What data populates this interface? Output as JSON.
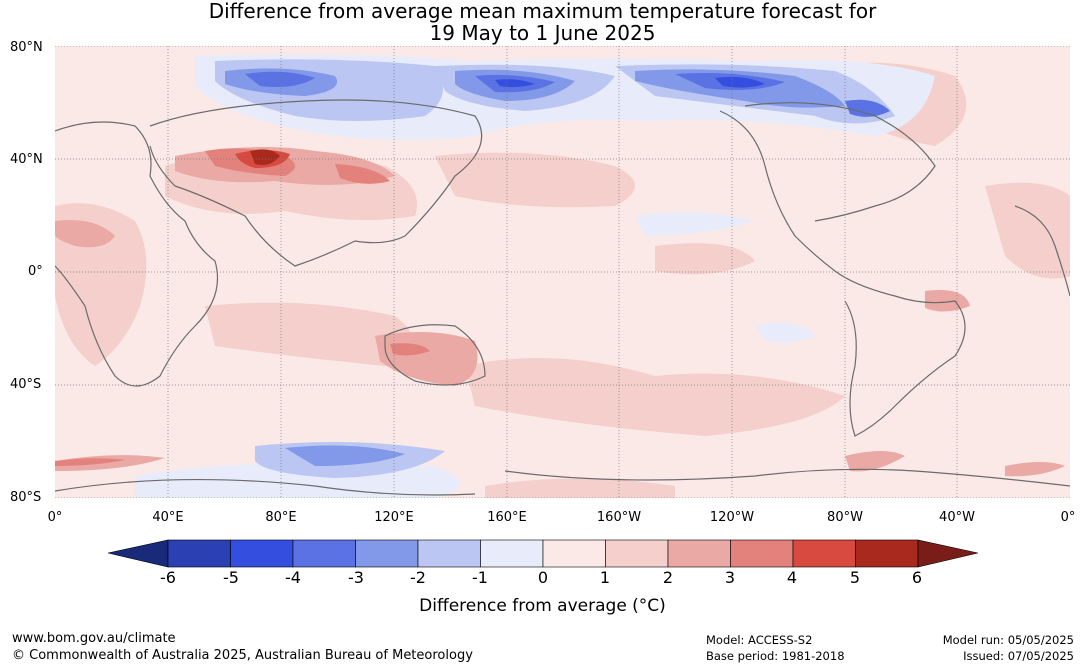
{
  "title_line1": "Difference from average mean maximum temperature forecast for",
  "title_line2": "19 May to 1 June 2025",
  "lat_labels": [
    "80°N",
    "40°N",
    "0°",
    "40°S",
    "80°S"
  ],
  "lon_labels": [
    "0°",
    "40°E",
    "80°E",
    "120°E",
    "160°E",
    "160°W",
    "120°W",
    "80°W",
    "40°W",
    "0°"
  ],
  "colorbar": {
    "ticks": [
      "-6",
      "-5",
      "-4",
      "-3",
      "-2",
      "-1",
      "0",
      "1",
      "2",
      "3",
      "4",
      "5",
      "6"
    ],
    "colors": [
      "#1a2a7a",
      "#2b40b3",
      "#344fe0",
      "#5a72e3",
      "#8298e8",
      "#bcc6f2",
      "#e8ecfa",
      "#fbe9e7",
      "#f4cfcc",
      "#eaa9a4",
      "#e3827c",
      "#d84a3f",
      "#a9291f",
      "#7a1c17"
    ],
    "label": "Difference from average (°C)"
  },
  "footer": {
    "url": "www.bom.gov.au/climate",
    "copyright": "© Commonwealth of Australia 2025, Australian Bureau of Meteorology",
    "model": "Model: ACCESS-S2",
    "base_period": "Base period: 1981-2018",
    "model_run": "Model run: 05/05/2025",
    "issued": "Issued: 07/05/2025"
  },
  "map_colors": {
    "ocean_base": "#fbe9e7",
    "land_line": "#6b6b6b",
    "grid_line": "#777777"
  }
}
